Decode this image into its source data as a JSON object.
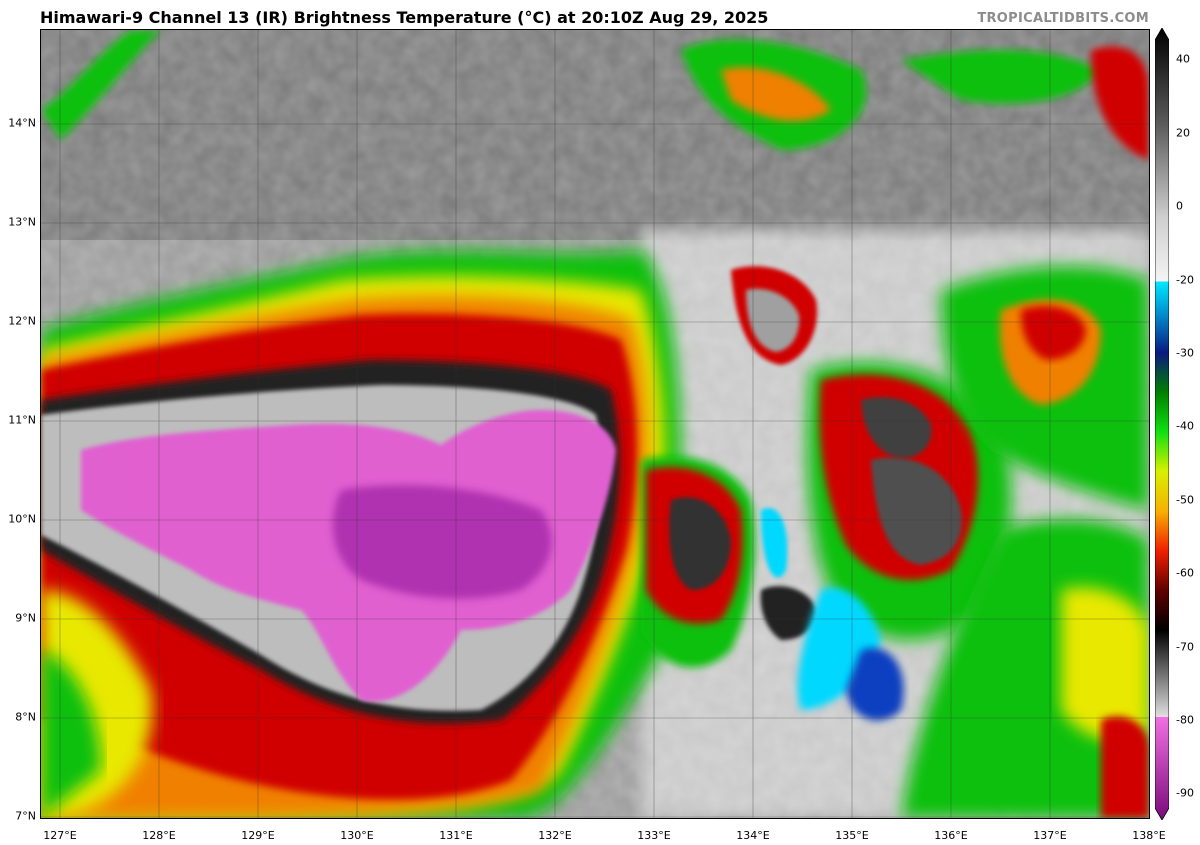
{
  "title": "Himawari-9 Channel 13 (IR) Brightness Temperature (°C) at 20:10Z Aug 29, 2025",
  "credit": "TROPICALTIDBITS.COM",
  "lat_labels": [
    "14°N",
    "13°N",
    "12°N",
    "11°N",
    "10°N",
    "9°N",
    "8°N",
    "7°N"
  ],
  "lon_labels": [
    "127°E",
    "128°E",
    "129°E",
    "130°E",
    "131°E",
    "132°E",
    "133°E",
    "134°E",
    "135°E",
    "136°E",
    "137°E",
    "138°E"
  ],
  "colorbar_labels": [
    "40",
    "20",
    "0",
    "-20",
    "-30",
    "-40",
    "-50",
    "-60",
    "-70",
    "-80",
    "-90"
  ],
  "colors": {
    "warm_gray_light": "#d9d9d9",
    "warm_gray_dark": "#707070",
    "cyan": "#00d8ff",
    "blue": "#1040c0",
    "green": "#10c010",
    "yellow": "#e8e800",
    "orange": "#f08000",
    "red": "#d00000",
    "dark_red": "#600000",
    "black": "#101010",
    "magenta": "#e060d0",
    "purple": "#901090"
  }
}
